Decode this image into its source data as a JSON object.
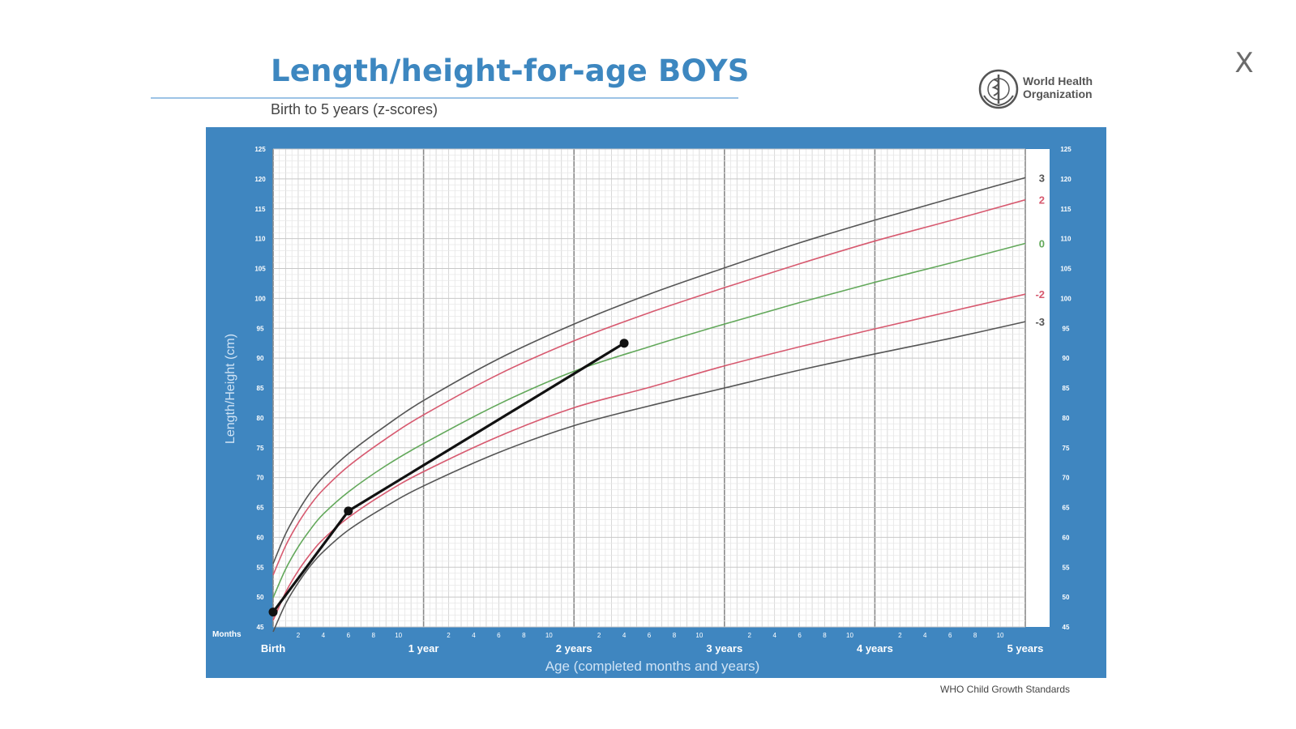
{
  "window": {
    "close_label": "X"
  },
  "header": {
    "title": "Length/height-for-age BOYS",
    "subtitle": "Birth to 5 years (z-scores)"
  },
  "logo": {
    "name_line1": "World Health",
    "name_line2": "Organization"
  },
  "footer": {
    "source": "WHO Child Growth Standards"
  },
  "colors": {
    "frame": "#3f86c0",
    "plot_bg": "#ffffff",
    "grid_minor": "#dcdcdc",
    "grid_major": "#8a8a8a",
    "z3": "#555555",
    "z2": "#d7596f",
    "z0": "#62a85a",
    "child": "#111111"
  },
  "chart_data": {
    "type": "line",
    "title": "Length/height-for-age BOYS",
    "subtitle": "Birth to 5 years (z-scores)",
    "xlabel": "Age (completed months and years)",
    "ylabel": "Length/Height (cm)",
    "xunit": "months",
    "xlim": [
      0,
      60
    ],
    "ylim": [
      45,
      125
    ],
    "grid": true,
    "x_ticks_labeled": [
      {
        "x": 0,
        "label": "Birth"
      },
      {
        "x": 12,
        "label": "1 year"
      },
      {
        "x": 24,
        "label": "2 years"
      },
      {
        "x": 36,
        "label": "3 years"
      },
      {
        "x": 48,
        "label": "4 years"
      },
      {
        "x": 60,
        "label": "5 years"
      }
    ],
    "x_minor_tick_labels": [
      "2",
      "4",
      "6",
      "8",
      "10"
    ],
    "row_label": "Months",
    "y_ticks": [
      45,
      50,
      55,
      60,
      65,
      70,
      75,
      80,
      85,
      90,
      95,
      100,
      105,
      110,
      115,
      120,
      125
    ],
    "series": [
      {
        "name": "3",
        "style": "z3",
        "x": [
          0,
          1,
          2,
          3,
          4,
          6,
          9,
          12,
          18,
          24,
          30,
          36,
          42,
          48,
          54,
          60
        ],
        "y": [
          55.6,
          60.6,
          64.4,
          67.6,
          70.1,
          74.0,
          78.7,
          82.9,
          89.9,
          95.7,
          100.7,
          105.1,
          109.3,
          113.1,
          116.7,
          120.2
        ]
      },
      {
        "name": "2",
        "style": "z2",
        "x": [
          0,
          1,
          2,
          3,
          4,
          6,
          9,
          12,
          18,
          24,
          30,
          36,
          42,
          48,
          54,
          60
        ],
        "y": [
          53.7,
          58.6,
          62.4,
          65.5,
          68.0,
          71.9,
          76.5,
          80.5,
          87.3,
          92.9,
          97.6,
          101.8,
          105.8,
          109.6,
          113.0,
          116.5
        ]
      },
      {
        "name": "0",
        "style": "z0",
        "x": [
          0,
          1,
          2,
          3,
          4,
          6,
          9,
          12,
          18,
          24,
          30,
          36,
          42,
          48,
          54,
          60
        ],
        "y": [
          49.9,
          54.7,
          58.4,
          61.4,
          63.9,
          67.6,
          72.0,
          75.7,
          82.3,
          87.8,
          91.9,
          95.7,
          99.3,
          102.7,
          105.9,
          109.2
        ]
      },
      {
        "name": "-2",
        "style": "z2",
        "x": [
          0,
          1,
          2,
          3,
          4,
          6,
          9,
          12,
          18,
          24,
          30,
          36,
          42,
          48,
          54,
          60
        ],
        "y": [
          46.1,
          50.8,
          54.4,
          57.3,
          59.7,
          63.3,
          67.5,
          71.0,
          76.9,
          81.7,
          85.1,
          88.7,
          91.9,
          94.9,
          97.8,
          100.7
        ]
      },
      {
        "name": "-3",
        "style": "z3",
        "x": [
          0,
          1,
          2,
          3,
          4,
          6,
          9,
          12,
          18,
          24,
          30,
          36,
          42,
          48,
          54,
          60
        ],
        "y": [
          44.2,
          48.9,
          52.4,
          55.3,
          57.6,
          61.2,
          65.2,
          68.6,
          74.2,
          78.7,
          82.0,
          85.0,
          88.0,
          90.7,
          93.3,
          96.1
        ]
      }
    ],
    "child_points": {
      "x": [
        0,
        6,
        28
      ],
      "y": [
        47.5,
        64.4,
        92.5
      ]
    }
  }
}
